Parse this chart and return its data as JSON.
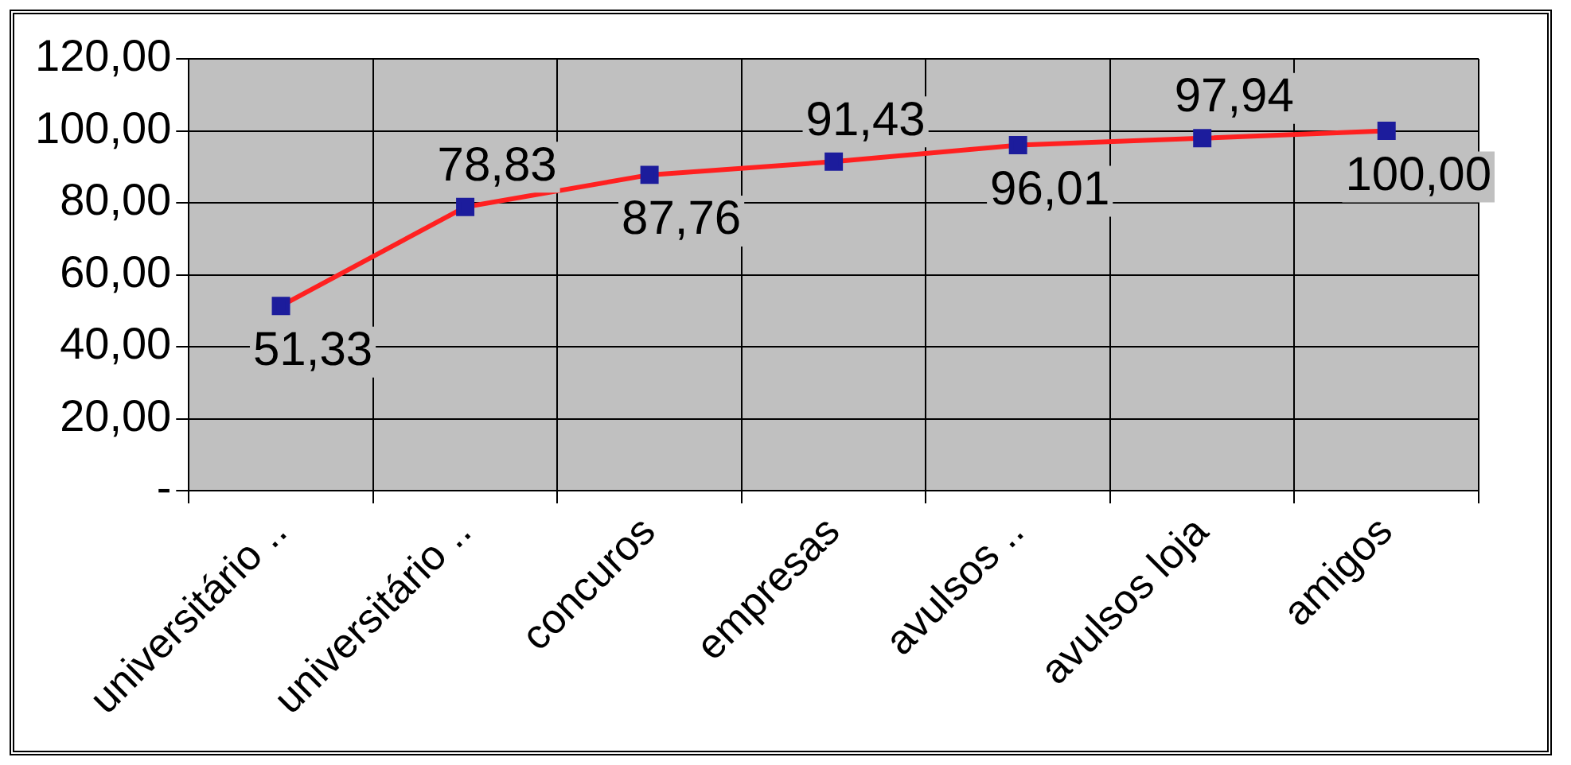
{
  "chart_data": {
    "type": "line",
    "categories": [
      "universitário ..",
      "universitário ..",
      "concuros",
      "empresas",
      "avulsos ..",
      "avulsos loja",
      "amigos"
    ],
    "series": [
      {
        "color": "#ff2020",
        "values": [
          51.33,
          78.83,
          87.76,
          91.43,
          96.01,
          97.94,
          100.0
        ],
        "value_labels": [
          "51,33",
          "78,83",
          "87,76",
          "91,43",
          "96,01",
          "97,94",
          "100,00"
        ]
      }
    ],
    "ylim": [
      0,
      120
    ],
    "yticks": [
      {
        "value": 0,
        "label": "-"
      },
      {
        "value": 20,
        "label": "20,00"
      },
      {
        "value": 40,
        "label": "40,00"
      },
      {
        "value": 60,
        "label": "60,00"
      },
      {
        "value": 80,
        "label": "80,00"
      },
      {
        "value": 100,
        "label": "100,00"
      },
      {
        "value": 120,
        "label": "120,00"
      }
    ],
    "grid": true,
    "marker": "square",
    "line_style": "solid",
    "legend": false
  }
}
